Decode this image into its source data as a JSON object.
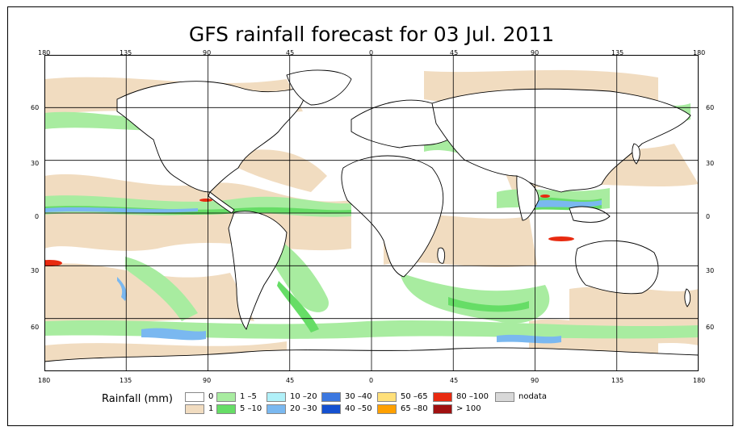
{
  "title": "GFS rainfall forecast for 03 Jul. 2011",
  "lon_ticks": [
    "180",
    "135",
    "90",
    "45",
    "0",
    "45",
    "90",
    "135",
    "180"
  ],
  "lat_ticks": [
    "60",
    "30",
    "0",
    "30",
    "60"
  ],
  "legend": {
    "title": "Rainfall (mm)",
    "items": [
      {
        "label": "0",
        "color": "#ffffff"
      },
      {
        "label": "1",
        "color": "#f1dcc0"
      },
      {
        "label": "1 –5",
        "color": "#a8eca0"
      },
      {
        "label": "5 –10",
        "color": "#66dd66"
      },
      {
        "label": "10 –20",
        "color": "#b0f0f8"
      },
      {
        "label": "20 –30",
        "color": "#7ab8f0"
      },
      {
        "label": "30 –40",
        "color": "#3c78e0"
      },
      {
        "label": "40 –50",
        "color": "#1450d0"
      },
      {
        "label": "50 –65",
        "color": "#ffe07a"
      },
      {
        "label": "65 –80",
        "color": "#ffa000"
      },
      {
        "label": "80 –100",
        "color": "#e82a10"
      },
      {
        "label": "> 100",
        "color": "#a01010"
      },
      {
        "label": "nodata",
        "color": "#d8d8d8"
      }
    ]
  }
}
